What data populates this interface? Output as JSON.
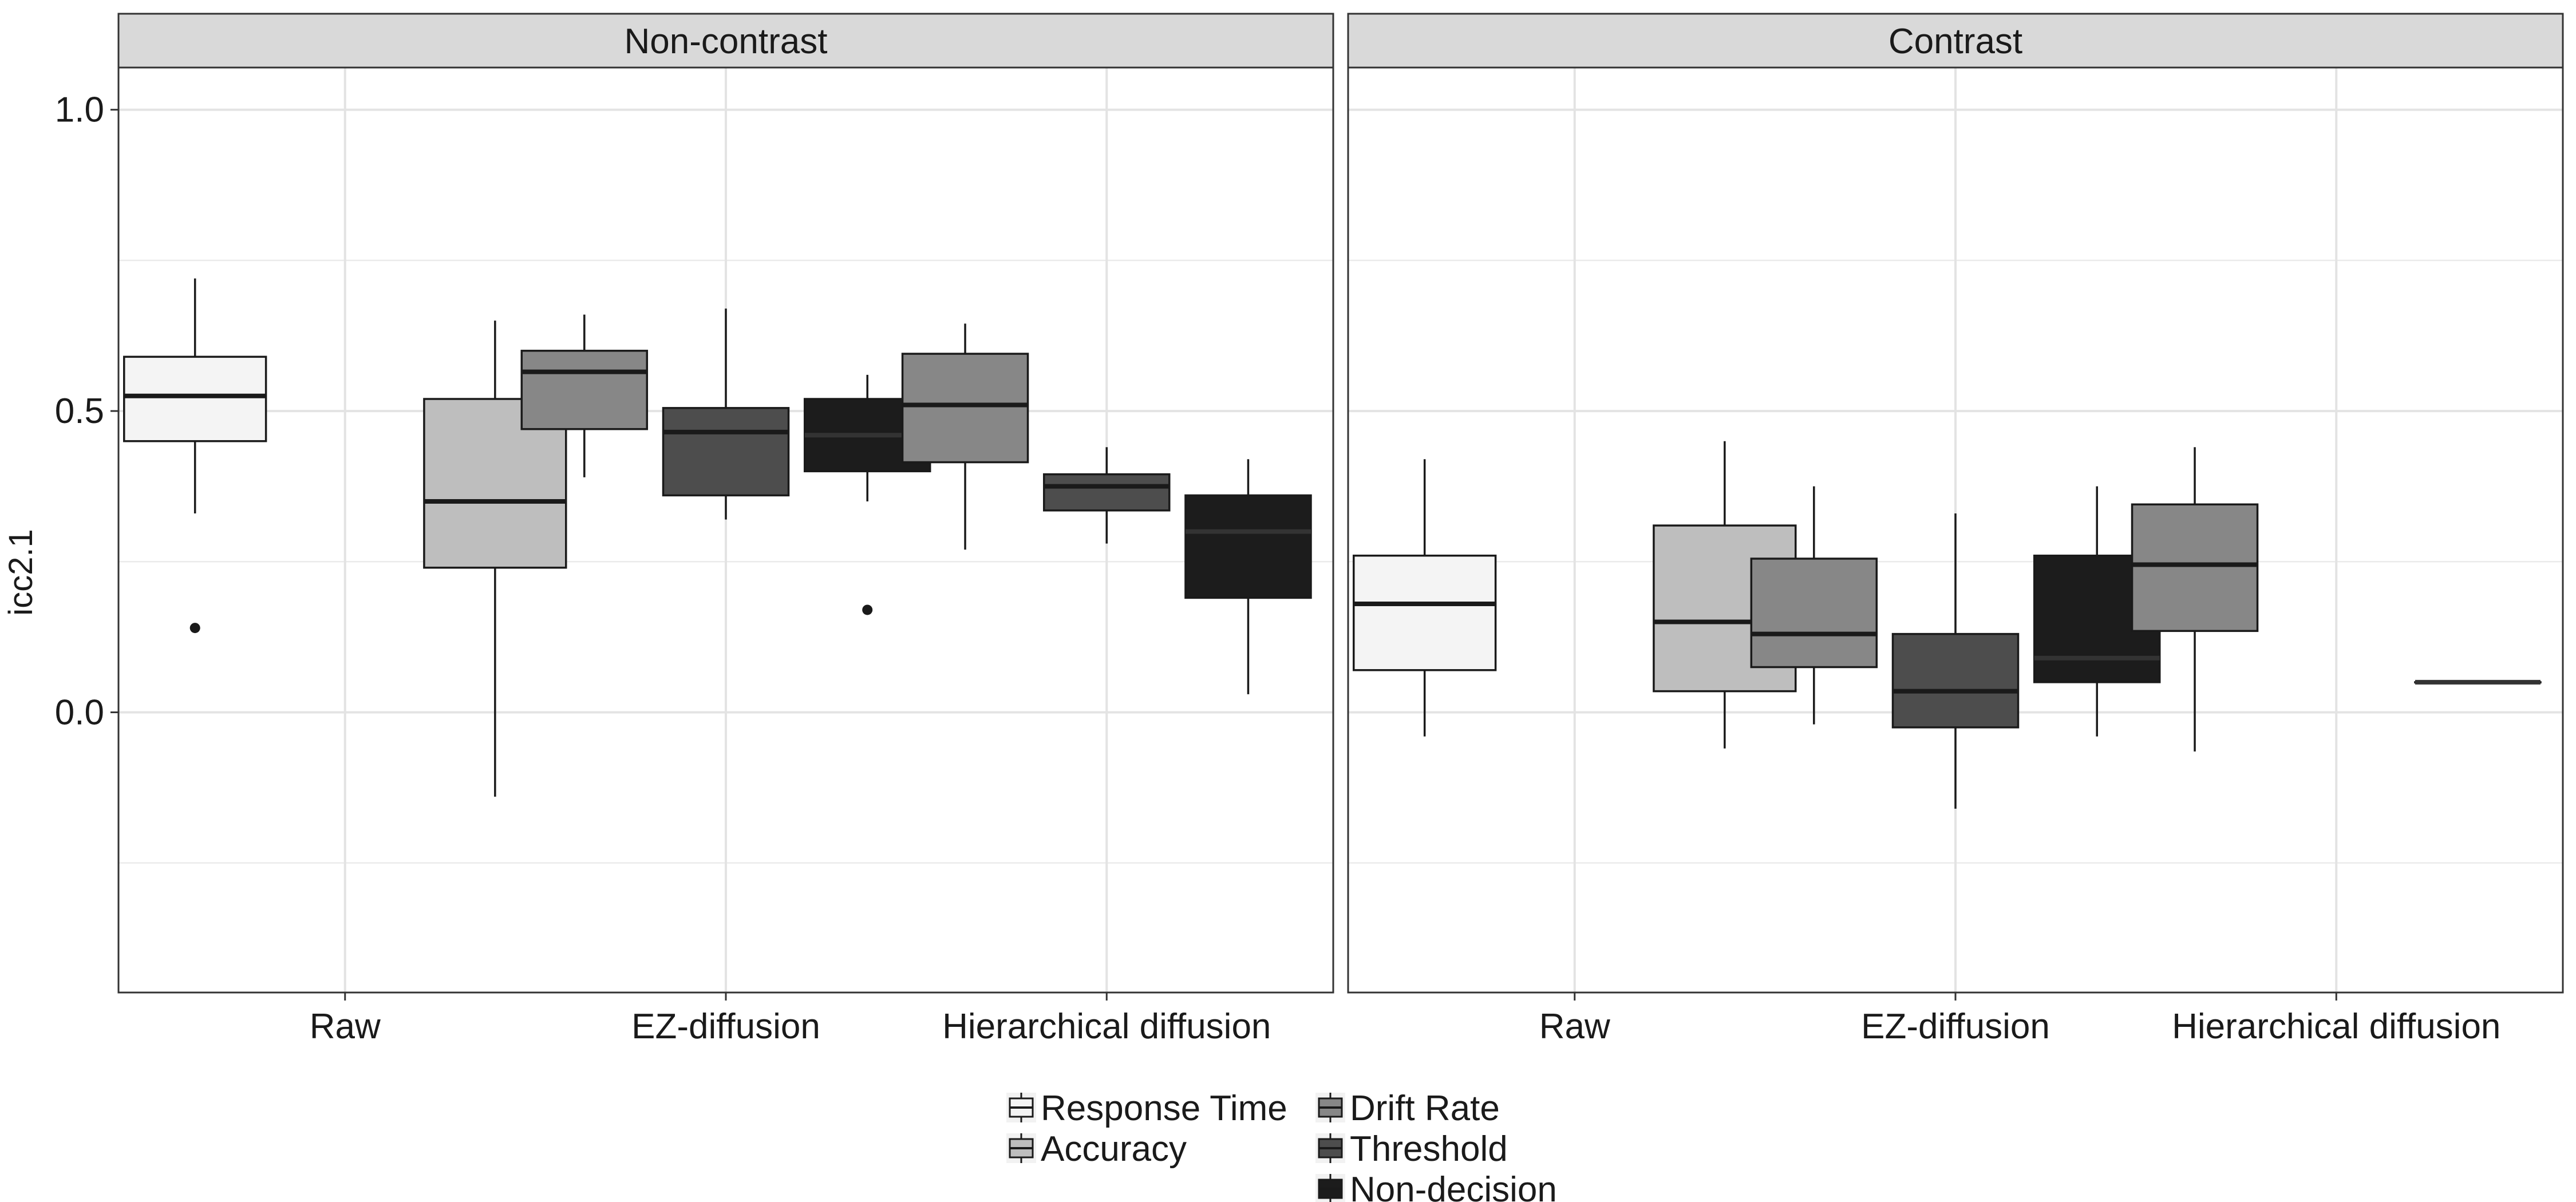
{
  "chart_data": {
    "type": "boxplot",
    "ylabel": "icc2.1",
    "ylim": [
      -0.465,
      1.07
    ],
    "yticks": [
      0.0,
      0.5,
      1.0
    ],
    "ytick_labels": [
      "0.0",
      "0.5",
      "1.0"
    ],
    "y_minor_gridlines": [
      -0.25,
      0.25,
      0.75
    ],
    "x_categories": [
      "Raw",
      "EZ-diffusion",
      "Hierarchical diffusion"
    ],
    "grid": true,
    "legend_position": "bottom",
    "series": [
      {
        "name": "Response Time",
        "color": "#f4f4f4"
      },
      {
        "name": "Accuracy",
        "color": "#bebebe"
      },
      {
        "name": "Drift Rate",
        "color": "#878787"
      },
      {
        "name": "Threshold",
        "color": "#4d4d4d"
      },
      {
        "name": "Non-decision",
        "color": "#1c1c1c"
      }
    ],
    "panels": [
      {
        "title": "Non-contrast",
        "boxes": [
          {
            "category": "Raw",
            "series": "Response Time",
            "min": 0.33,
            "q1": 0.45,
            "median": 0.525,
            "q3": 0.59,
            "max": 0.72,
            "outliers": [
              0.14
            ]
          },
          {
            "category": "Raw",
            "series": "Accuracy",
            "min": -0.14,
            "q1": 0.24,
            "median": 0.35,
            "q3": 0.52,
            "max": 0.65,
            "outliers": []
          },
          {
            "category": "EZ-diffusion",
            "series": "Drift Rate",
            "min": 0.39,
            "q1": 0.47,
            "median": 0.565,
            "q3": 0.6,
            "max": 0.66,
            "outliers": []
          },
          {
            "category": "EZ-diffusion",
            "series": "Threshold",
            "min": 0.32,
            "q1": 0.36,
            "median": 0.465,
            "q3": 0.505,
            "max": 0.67,
            "outliers": []
          },
          {
            "category": "EZ-diffusion",
            "series": "Non-decision",
            "min": 0.35,
            "q1": 0.4,
            "median": 0.46,
            "q3": 0.52,
            "max": 0.56,
            "outliers": [
              0.17
            ]
          },
          {
            "category": "Hierarchical diffusion",
            "series": "Drift Rate",
            "min": 0.27,
            "q1": 0.415,
            "median": 0.51,
            "q3": 0.595,
            "max": 0.645,
            "outliers": []
          },
          {
            "category": "Hierarchical diffusion",
            "series": "Threshold",
            "min": 0.28,
            "q1": 0.335,
            "median": 0.375,
            "q3": 0.395,
            "max": 0.44,
            "outliers": []
          },
          {
            "category": "Hierarchical diffusion",
            "series": "Non-decision",
            "min": 0.03,
            "q1": 0.19,
            "median": 0.3,
            "q3": 0.36,
            "max": 0.42,
            "outliers": []
          }
        ]
      },
      {
        "title": "Contrast",
        "boxes": [
          {
            "category": "Raw",
            "series": "Response Time",
            "min": -0.04,
            "q1": 0.07,
            "median": 0.18,
            "q3": 0.26,
            "max": 0.42,
            "outliers": []
          },
          {
            "category": "Raw",
            "series": "Accuracy",
            "min": -0.06,
            "q1": 0.035,
            "median": 0.15,
            "q3": 0.31,
            "max": 0.45,
            "outliers": []
          },
          {
            "category": "EZ-diffusion",
            "series": "Drift Rate",
            "min": -0.02,
            "q1": 0.075,
            "median": 0.13,
            "q3": 0.255,
            "max": 0.375,
            "outliers": []
          },
          {
            "category": "EZ-diffusion",
            "series": "Threshold",
            "min": -0.16,
            "q1": -0.025,
            "median": 0.035,
            "q3": 0.13,
            "max": 0.33,
            "outliers": []
          },
          {
            "category": "EZ-diffusion",
            "series": "Non-decision",
            "min": -0.04,
            "q1": 0.05,
            "median": 0.09,
            "q3": 0.26,
            "max": 0.375,
            "outliers": []
          },
          {
            "category": "Hierarchical diffusion",
            "series": "Drift Rate",
            "min": -0.065,
            "q1": 0.135,
            "median": 0.245,
            "q3": 0.345,
            "max": 0.44,
            "outliers": []
          },
          {
            "category": "Hierarchical diffusion",
            "series": "Non-decision",
            "min": 0.05,
            "q1": 0.05,
            "median": 0.05,
            "q3": 0.05,
            "max": 0.05,
            "outliers": []
          }
        ]
      }
    ]
  }
}
